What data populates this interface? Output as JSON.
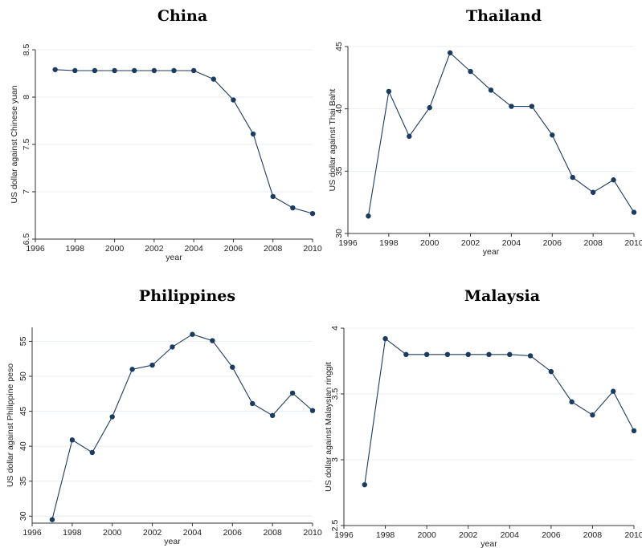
{
  "chart_data": [
    {
      "type": "line",
      "title": "China",
      "xlabel": "year",
      "ylabel": "US dollar against Chinese yuan",
      "xlim": [
        1996,
        2010
      ],
      "ylim": [
        6.5,
        8.5
      ],
      "xticks": [
        1996,
        1998,
        2000,
        2002,
        2004,
        2006,
        2008,
        2010
      ],
      "yticks": [
        6.5,
        7,
        7.5,
        8,
        8.5
      ],
      "ytick_labels": [
        "6.5",
        "7",
        "7.5",
        "8",
        "8.5"
      ],
      "grid": true,
      "series": [
        {
          "x": [
            1997,
            1998,
            1999,
            2000,
            2001,
            2002,
            2003,
            2004,
            2005,
            2006,
            2007,
            2008,
            2009,
            2010
          ],
          "values": [
            8.29,
            8.28,
            8.28,
            8.28,
            8.28,
            8.28,
            8.28,
            8.28,
            8.19,
            7.97,
            7.61,
            6.95,
            6.83,
            6.77
          ]
        }
      ]
    },
    {
      "type": "line",
      "title": "Thailand",
      "xlabel": "year",
      "ylabel": "US dollar against Thai Baht",
      "xlim": [
        1996,
        2010
      ],
      "ylim": [
        30,
        45
      ],
      "xticks": [
        1996,
        1998,
        2000,
        2002,
        2004,
        2006,
        2008,
        2010
      ],
      "yticks": [
        30,
        35,
        40,
        45
      ],
      "ytick_labels": [
        "30",
        "35",
        "40",
        "45"
      ],
      "grid": true,
      "series": [
        {
          "x": [
            1997,
            1998,
            1999,
            2000,
            2001,
            2002,
            2003,
            2004,
            2005,
            2006,
            2007,
            2008,
            2009,
            2010
          ],
          "values": [
            31.4,
            41.4,
            37.8,
            40.1,
            44.5,
            43.0,
            41.5,
            40.2,
            40.2,
            37.9,
            34.5,
            33.3,
            34.3,
            31.7
          ]
        }
      ]
    },
    {
      "type": "line",
      "title": "Philippines",
      "xlabel": "year",
      "ylabel": "US dollar against Philippine peso",
      "xlim": [
        1996,
        2010
      ],
      "ylim": [
        29,
        57
      ],
      "xticks": [
        1996,
        1998,
        2000,
        2002,
        2004,
        2006,
        2008,
        2010
      ],
      "yticks": [
        30,
        35,
        40,
        45,
        50,
        55
      ],
      "ytick_labels": [
        "30",
        "35",
        "40",
        "45",
        "50",
        "55"
      ],
      "grid": true,
      "series": [
        {
          "x": [
            1997,
            1998,
            1999,
            2000,
            2001,
            2002,
            2003,
            2004,
            2005,
            2006,
            2007,
            2008,
            2009,
            2010
          ],
          "values": [
            29.5,
            40.9,
            39.1,
            44.2,
            51.0,
            51.6,
            54.2,
            56.0,
            55.1,
            51.3,
            46.1,
            44.4,
            47.6,
            45.1
          ]
        }
      ]
    },
    {
      "type": "line",
      "title": "Malaysia",
      "xlabel": "year",
      "ylabel": "US dollar against Malaysian ringgit",
      "xlim": [
        1996,
        2010
      ],
      "ylim": [
        2.5,
        4
      ],
      "xticks": [
        1996,
        1998,
        2000,
        2002,
        2004,
        2006,
        2008,
        2010
      ],
      "yticks": [
        2.5,
        3,
        3.5,
        4
      ],
      "ytick_labels": [
        "2.5",
        "3",
        "3.5",
        "4"
      ],
      "grid": true,
      "series": [
        {
          "x": [
            1997,
            1998,
            1999,
            2000,
            2001,
            2002,
            2003,
            2004,
            2005,
            2006,
            2007,
            2008,
            2009,
            2010
          ],
          "values": [
            2.81,
            3.92,
            3.8,
            3.8,
            3.8,
            3.8,
            3.8,
            3.8,
            3.79,
            3.67,
            3.44,
            3.34,
            3.52,
            3.22
          ]
        }
      ]
    }
  ]
}
